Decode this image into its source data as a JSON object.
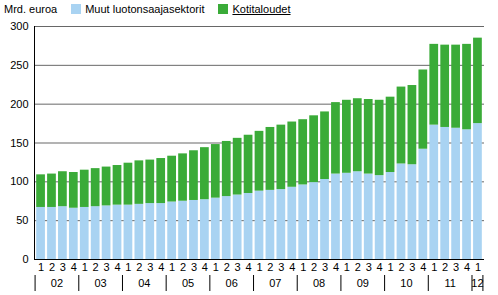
{
  "chart_data": {
    "type": "bar",
    "stacked": true,
    "ylabel": "Mrd. euroa",
    "categories": [
      "1",
      "2",
      "3",
      "4",
      "1",
      "2",
      "3",
      "4",
      "1",
      "2",
      "3",
      "4",
      "1",
      "2",
      "3",
      "4",
      "1",
      "2",
      "3",
      "4",
      "1",
      "2",
      "3",
      "4",
      "1",
      "2",
      "3",
      "4",
      "1",
      "2",
      "3",
      "4",
      "1",
      "2",
      "3",
      "4",
      "1",
      "2",
      "3",
      "4",
      "1"
    ],
    "x_groups": [
      {
        "label": "02",
        "size": 4
      },
      {
        "label": "03",
        "size": 4
      },
      {
        "label": "04",
        "size": 4
      },
      {
        "label": "05",
        "size": 4
      },
      {
        "label": "06",
        "size": 4
      },
      {
        "label": "07",
        "size": 4
      },
      {
        "label": "08",
        "size": 4
      },
      {
        "label": "09",
        "size": 4
      },
      {
        "label": "10",
        "size": 4
      },
      {
        "label": "11",
        "size": 4
      },
      {
        "label": "12",
        "size": 1
      }
    ],
    "series": [
      {
        "name": "Muut luotonsaajasektorit",
        "color": "#a9d3f2",
        "values": [
          67,
          67,
          68,
          66,
          67,
          68,
          69,
          70,
          70,
          71,
          72,
          72,
          74,
          75,
          76,
          77,
          79,
          81,
          83,
          85,
          88,
          89,
          90,
          93,
          96,
          99,
          103,
          110,
          111,
          113,
          110,
          108,
          112,
          123,
          122,
          142,
          173,
          170,
          169,
          167,
          175
        ]
      },
      {
        "name": "Kotitaloudet",
        "color": "#3aab38",
        "values": [
          42,
          43,
          45,
          46,
          48,
          49,
          50,
          51,
          54,
          56,
          56,
          58,
          59,
          61,
          64,
          67,
          69,
          71,
          73,
          75,
          77,
          81,
          83,
          84,
          84,
          86,
          87,
          92,
          94,
          94,
          96,
          97,
          97,
          99,
          102,
          102,
          104,
          106,
          107,
          110,
          110
        ]
      }
    ],
    "ylim": [
      0,
      300
    ],
    "yticks": [
      0,
      50,
      100,
      150,
      200,
      250,
      300
    ],
    "grid": true,
    "legend": "top"
  }
}
